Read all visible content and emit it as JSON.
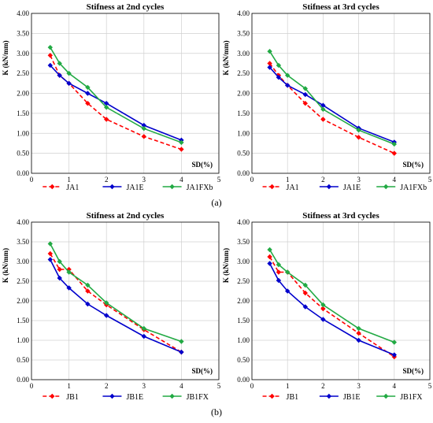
{
  "chart_data": [
    {
      "type": "line",
      "title": "Stifness at 2nd cycles",
      "ylabel": "K (kN/mm)",
      "xlabel": "SD(%)",
      "xlim": [
        0,
        5
      ],
      "ylim": [
        0,
        4
      ],
      "xticks": [
        "0",
        "1",
        "2",
        "3",
        "4",
        "5"
      ],
      "yticks": [
        "0.00",
        "0.50",
        "1.00",
        "1.50",
        "2.00",
        "2.50",
        "3.00",
        "3.50",
        "4.00"
      ],
      "grid": true,
      "legend": "bottom",
      "series": [
        {
          "name": "JA1",
          "color": "#ff0000",
          "dash": true,
          "x": [
            0.5,
            0.75,
            1,
            1.5,
            2,
            3,
            4
          ],
          "y": [
            2.95,
            2.45,
            2.25,
            1.75,
            1.35,
            0.92,
            0.6
          ]
        },
        {
          "name": "JA1E",
          "color": "#0000cc",
          "dash": false,
          "x": [
            0.5,
            0.75,
            1,
            1.5,
            2,
            3,
            4
          ],
          "y": [
            2.7,
            2.45,
            2.25,
            2.0,
            1.75,
            1.2,
            0.83
          ]
        },
        {
          "name": "JA1FXb",
          "color": "#22aa44",
          "dash": false,
          "x": [
            0.5,
            0.75,
            1,
            1.5,
            2,
            3,
            4
          ],
          "y": [
            3.15,
            2.75,
            2.5,
            2.15,
            1.65,
            1.12,
            0.77
          ]
        }
      ]
    },
    {
      "type": "line",
      "title": "Stifness at 3rd cycles",
      "ylabel": "K (kN/mm)",
      "xlabel": "SD(%)",
      "xlim": [
        0,
        5
      ],
      "ylim": [
        0,
        4
      ],
      "xticks": [
        "0",
        "1",
        "2",
        "3",
        "4",
        "5"
      ],
      "yticks": [
        "0.00",
        "0.50",
        "1.00",
        "1.50",
        "2.00",
        "2.50",
        "3.00",
        "3.50",
        "4.00"
      ],
      "grid": true,
      "legend": "bottom",
      "series": [
        {
          "name": "JA1",
          "color": "#ff0000",
          "dash": true,
          "x": [
            0.5,
            0.75,
            1,
            1.5,
            2,
            3,
            4
          ],
          "y": [
            2.75,
            2.45,
            2.2,
            1.75,
            1.35,
            0.9,
            0.5
          ]
        },
        {
          "name": "JA1E",
          "color": "#0000cc",
          "dash": false,
          "x": [
            0.5,
            0.75,
            1,
            1.5,
            2,
            3,
            4
          ],
          "y": [
            2.65,
            2.4,
            2.2,
            1.97,
            1.7,
            1.13,
            0.78
          ]
        },
        {
          "name": "JA1FXb",
          "color": "#22aa44",
          "dash": false,
          "x": [
            0.5,
            0.75,
            1,
            1.5,
            2,
            3,
            4
          ],
          "y": [
            3.05,
            2.7,
            2.45,
            2.12,
            1.6,
            1.08,
            0.73
          ]
        }
      ]
    },
    {
      "type": "line",
      "title": "Stifness at 2nd cycles",
      "ylabel": "K (kN/mm)",
      "xlabel": "SD(%)",
      "xlim": [
        0,
        5
      ],
      "ylim": [
        0,
        4
      ],
      "xticks": [
        "0",
        "1",
        "2",
        "3",
        "4",
        "5"
      ],
      "yticks": [
        "0.00",
        "0.50",
        "1.00",
        "1.50",
        "2.00",
        "2.50",
        "3.00",
        "3.50",
        "4.00"
      ],
      "grid": true,
      "legend": "bottom",
      "series": [
        {
          "name": "JB1",
          "color": "#ff0000",
          "dash": true,
          "x": [
            0.5,
            0.75,
            1,
            1.5,
            2,
            3,
            4
          ],
          "y": [
            3.2,
            2.8,
            2.8,
            2.25,
            1.9,
            1.27,
            0.7
          ]
        },
        {
          "name": "JB1E",
          "color": "#0000cc",
          "dash": false,
          "x": [
            0.5,
            0.75,
            1,
            1.5,
            2,
            3,
            4
          ],
          "y": [
            3.05,
            2.58,
            2.33,
            1.92,
            1.63,
            1.1,
            0.7
          ]
        },
        {
          "name": "JB1FX",
          "color": "#22aa44",
          "dash": false,
          "x": [
            0.5,
            0.75,
            1,
            1.5,
            2,
            3,
            4
          ],
          "y": [
            3.45,
            3.0,
            2.73,
            2.4,
            1.95,
            1.3,
            0.97
          ]
        }
      ]
    },
    {
      "type": "line",
      "title": "Stifness at 3rd cycles",
      "ylabel": "K (kN/mm)",
      "xlabel": "SD(%)",
      "xlim": [
        0,
        5
      ],
      "ylim": [
        0,
        4
      ],
      "xticks": [
        "0",
        "1",
        "2",
        "3",
        "4",
        "5"
      ],
      "yticks": [
        "0.00",
        "0.50",
        "1.00",
        "1.50",
        "2.00",
        "2.50",
        "3.00",
        "3.50",
        "4.00"
      ],
      "grid": true,
      "legend": "bottom",
      "series": [
        {
          "name": "JB1",
          "color": "#ff0000",
          "dash": true,
          "x": [
            0.5,
            0.75,
            1,
            1.5,
            2,
            3,
            4
          ],
          "y": [
            3.12,
            2.73,
            2.73,
            2.2,
            1.8,
            1.18,
            0.58
          ]
        },
        {
          "name": "JB1E",
          "color": "#0000cc",
          "dash": false,
          "x": [
            0.5,
            0.75,
            1,
            1.5,
            2,
            3,
            4
          ],
          "y": [
            2.95,
            2.52,
            2.25,
            1.85,
            1.53,
            1.0,
            0.63
          ]
        },
        {
          "name": "JB1FX",
          "color": "#22aa44",
          "dash": false,
          "x": [
            0.5,
            0.75,
            1,
            1.5,
            2,
            3,
            4
          ],
          "y": [
            3.3,
            2.92,
            2.73,
            2.4,
            1.9,
            1.3,
            0.95
          ]
        }
      ]
    }
  ],
  "captions": [
    "(a)",
    "(b)"
  ]
}
